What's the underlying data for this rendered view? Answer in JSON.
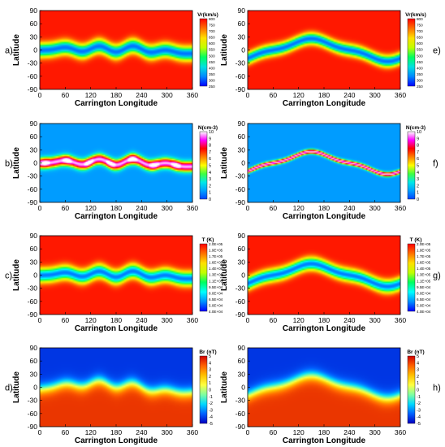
{
  "colors": {
    "vr": [
      "#0000ff",
      "#0088ff",
      "#00e0e0",
      "#00ff60",
      "#c0ff00",
      "#ffe000",
      "#ff7000",
      "#ff0000"
    ],
    "n": [
      "#0044ff",
      "#00a0ff",
      "#00e8e8",
      "#40ff40",
      "#ffff00",
      "#ff8000",
      "#ff0000",
      "#ff00ff",
      "#ffffff"
    ],
    "t": [
      "#0000ff",
      "#0090ff",
      "#00ffff",
      "#00ff60",
      "#c0ff00",
      "#ffe000",
      "#ff7000",
      "#ff0000"
    ],
    "br": [
      "#0000c0",
      "#0060ff",
      "#00d8ff",
      "#80ffa0",
      "#ffff40",
      "#ffc000",
      "#ff6000",
      "#d00000"
    ]
  },
  "chart_data": [
    {
      "type": "heatmap",
      "panel": "a)",
      "xlabel": "Carrington Longitude",
      "ylabel": "Latitude",
      "xticks": [
        0,
        60,
        120,
        180,
        240,
        300,
        360
      ],
      "yticks": [
        90,
        60,
        30,
        0,
        -30,
        -60,
        -90
      ],
      "xlim": [
        0,
        360
      ],
      "ylim": [
        -90,
        90
      ],
      "colorbar_title": "Vr(km/s)",
      "colorbar_ticks": [
        "800",
        "750",
        "700",
        "650",
        "600",
        "550",
        "500",
        "450",
        "400",
        "350",
        "300",
        "250"
      ],
      "scale": "vr",
      "model": "band",
      "band": {
        "width": 22,
        "phase": 40,
        "amp": 6
      }
    },
    {
      "type": "heatmap",
      "panel": "e)",
      "xlabel": "Carrington Longitude",
      "ylabel": "Latitude",
      "xticks": [
        0,
        60,
        120,
        180,
        240,
        300,
        360
      ],
      "yticks": [
        90,
        60,
        30,
        0,
        -30,
        -60,
        -90
      ],
      "xlim": [
        0,
        360
      ],
      "ylim": [
        -90,
        90
      ],
      "colorbar_title": "Vr(km/s)",
      "colorbar_ticks": [
        "800",
        "750",
        "700",
        "650",
        "600",
        "550",
        "500",
        "450",
        "400",
        "350",
        "300",
        "250"
      ],
      "scale": "vr",
      "model": "wave",
      "band": {
        "width": 18,
        "phase": 60,
        "amp": 22
      }
    },
    {
      "type": "heatmap",
      "panel": "b)",
      "xlabel": "Carrington Longitude",
      "ylabel": "Latitude",
      "xticks": [
        0,
        60,
        120,
        180,
        240,
        300,
        360
      ],
      "yticks": [
        90,
        60,
        30,
        0,
        -30,
        -60,
        -90
      ],
      "xlim": [
        0,
        360
      ],
      "ylim": [
        -90,
        90
      ],
      "colorbar_title": "N(cm-3)",
      "colorbar_ticks": [
        "10",
        "9",
        "8",
        "7",
        "6",
        "5",
        "4",
        "3",
        "2",
        "1",
        "0"
      ],
      "scale": "n",
      "model": "band",
      "band": {
        "width": 16,
        "phase": 40,
        "amp": 6
      }
    },
    {
      "type": "heatmap",
      "panel": "f)",
      "xlabel": "Carrington Longitude",
      "ylabel": "Latitude",
      "xticks": [
        0,
        60,
        120,
        180,
        240,
        300,
        360
      ],
      "yticks": [
        90,
        60,
        30,
        0,
        -30,
        -60,
        -90
      ],
      "xlim": [
        0,
        360
      ],
      "ylim": [
        -90,
        90
      ],
      "colorbar_title": "N(cm-3)",
      "colorbar_ticks": [
        "10",
        "9",
        "8",
        "7",
        "6",
        "5",
        "4",
        "3",
        "2",
        "1",
        "0"
      ],
      "scale": "n",
      "model": "wave",
      "band": {
        "width": 7,
        "phase": 60,
        "amp": 22
      }
    },
    {
      "type": "heatmap",
      "panel": "c)",
      "xlabel": "Carrington Longitude",
      "ylabel": "Latitude",
      "xticks": [
        0,
        60,
        120,
        180,
        240,
        300,
        360
      ],
      "yticks": [
        90,
        60,
        30,
        0,
        -30,
        -60,
        -90
      ],
      "xlim": [
        0,
        360
      ],
      "ylim": [
        -90,
        90
      ],
      "colorbar_title": "T (K)",
      "colorbar_ticks": [
        "2.0E+05",
        "1.9E+05",
        "1.7E+05",
        "1.6E+05",
        "1.4E+05",
        "1.3E+05",
        "1.1E+05",
        "9.5E+04",
        "8.0E+04",
        "6.5E+04",
        "5.0E+04",
        "4.0E+04"
      ],
      "scale": "t",
      "model": "band",
      "band": {
        "width": 22,
        "phase": 40,
        "amp": 6
      }
    },
    {
      "type": "heatmap",
      "panel": "g)",
      "xlabel": "Carrington Longitude",
      "ylabel": "Latitude",
      "xticks": [
        0,
        60,
        120,
        180,
        240,
        300,
        360
      ],
      "yticks": [
        90,
        60,
        30,
        0,
        -30,
        -60,
        -90
      ],
      "xlim": [
        0,
        360
      ],
      "ylim": [
        -90,
        90
      ],
      "colorbar_title": "T (K)",
      "colorbar_ticks": [
        "2.0E+05",
        "1.9E+05",
        "1.7E+05",
        "1.6E+05",
        "1.4E+05",
        "1.3E+05",
        "1.1E+05",
        "9.5E+04",
        "8.0E+04",
        "6.5E+04",
        "5.0E+04",
        "4.0E+04"
      ],
      "scale": "t",
      "model": "wave",
      "band": {
        "width": 20,
        "phase": 60,
        "amp": 22
      }
    },
    {
      "type": "heatmap",
      "panel": "d)",
      "xlabel": "Carrington Longitude",
      "ylabel": "Latitude",
      "xticks": [
        0,
        60,
        120,
        180,
        240,
        300,
        360
      ],
      "yticks": [
        90,
        60,
        30,
        0,
        -30,
        -60,
        -90
      ],
      "xlim": [
        0,
        360
      ],
      "ylim": [
        -90,
        90
      ],
      "colorbar_title": "Br (nT)",
      "colorbar_ticks": [
        "5",
        "4",
        "3",
        "2",
        "1",
        "0",
        "-1",
        "-2",
        "-3",
        "-4",
        "-5"
      ],
      "scale": "br",
      "model": "polarity",
      "band": {
        "width": 14,
        "phase": 40,
        "amp": 12
      }
    },
    {
      "type": "heatmap",
      "panel": "h)",
      "xlabel": "Carrington Longitude",
      "ylabel": "Latitude",
      "xticks": [
        0,
        60,
        120,
        180,
        240,
        300,
        360
      ],
      "yticks": [
        90,
        60,
        30,
        0,
        -30,
        -60,
        -90
      ],
      "xlim": [
        0,
        360
      ],
      "ylim": [
        -90,
        90
      ],
      "colorbar_title": "Br (nT)",
      "colorbar_ticks": [
        "5",
        "4",
        "3",
        "2",
        "1",
        "0",
        "-1",
        "-2",
        "-3",
        "-4",
        "-5"
      ],
      "scale": "br",
      "model": "polarity",
      "band": {
        "width": 14,
        "phase": 60,
        "amp": 22
      }
    }
  ]
}
